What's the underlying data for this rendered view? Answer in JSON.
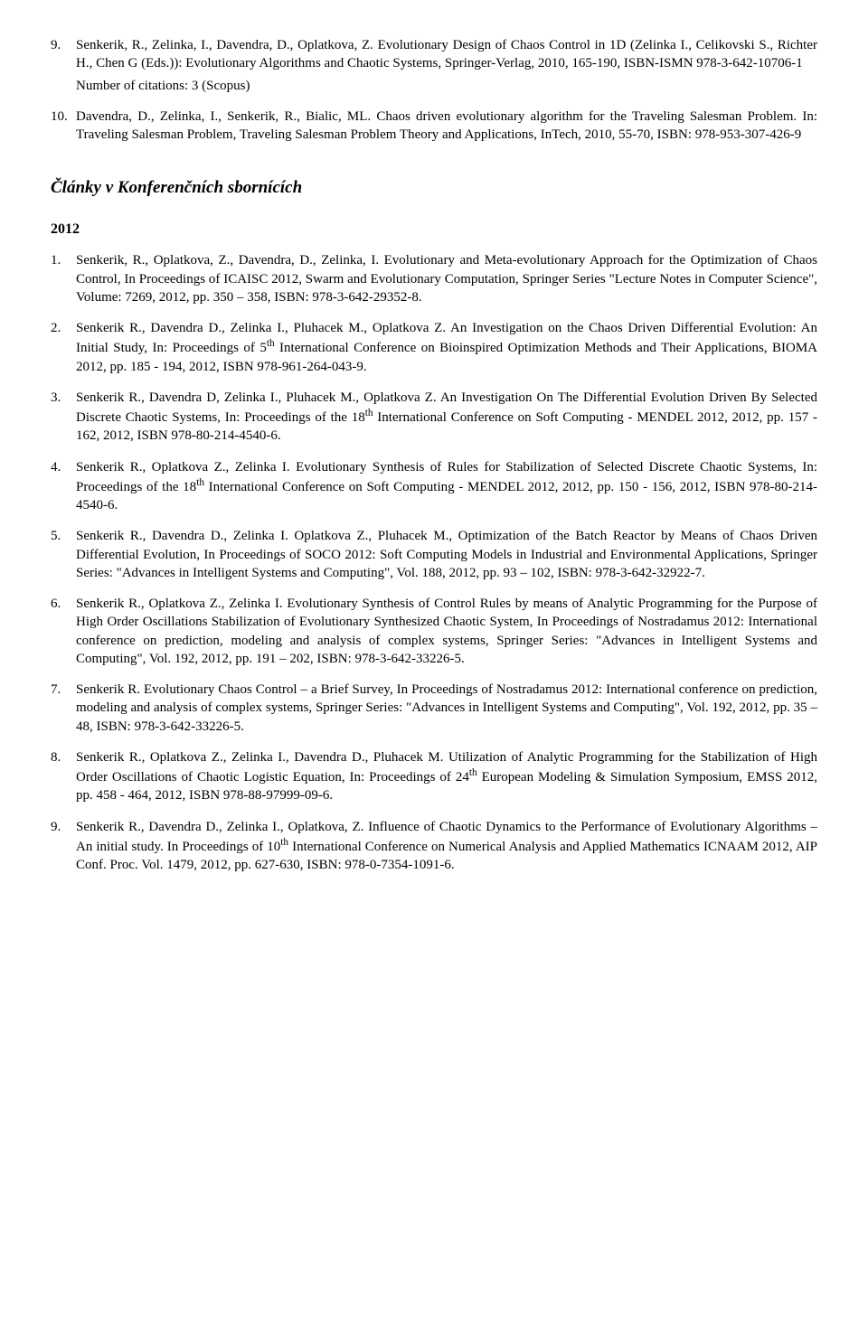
{
  "top_refs": [
    {
      "num": "9.",
      "text": "Senkerik, R., Zelinka, I., Davendra, D., Oplatkova, Z. Evolutionary Design of Chaos Control in 1D (Zelinka I., Celikovski S., Richter H., Chen G (Eds.)): Evolutionary Algorithms and Chaotic Systems, Springer-Verlag, 2010, 165-190, ISBN-ISMN 978-3-642-10706-1",
      "suffix": "Number of citations: 3 (Scopus)"
    },
    {
      "num": "10.",
      "text": "Davendra, D., Zelinka, I., Senkerik, R., Bialic, ML. Chaos driven evolutionary algorithm for the Traveling Salesman Problem. In: Traveling Salesman Problem, Traveling Salesman Problem Theory and Applications, InTech, 2010, 55-70, ISBN: 978-953-307-426-9",
      "suffix": ""
    }
  ],
  "section_title": "Články v Konferenčních sbornících",
  "year": "2012",
  "conf_refs": [
    {
      "num": "1.",
      "text": "Senkerik, R., Oplatkova, Z., Davendra, D., Zelinka, I. Evolutionary and Meta-evolutionary Approach for the Optimization of Chaos Control, In Proceedings of ICAISC 2012, Swarm and Evolutionary Computation, Springer Series \"Lecture Notes in Computer Science\", Volume: 7269, 2012, pp. 350 – 358, ISBN: 978-3-642-29352-8."
    },
    {
      "num": "2.",
      "html": "Senkerik R., Davendra D., Zelinka I., Pluhacek M., Oplatkova Z. An Investigation on the Chaos Driven Differential Evolution: An Initial Study, In: Proceedings of 5<sup>th</sup> International Conference on Bioinspired Optimization Methods and Their Applications, BIOMA 2012, pp. 185 - 194, 2012, ISBN 978-961-264-043-9."
    },
    {
      "num": "3.",
      "html": "Senkerik R., Davendra D, Zelinka I., Pluhacek M., Oplatkova Z. An Investigation On The Differential Evolution Driven By Selected Discrete Chaotic Systems, In: Proceedings of the 18<sup>th</sup> International Conference on Soft Computing - MENDEL 2012, 2012, pp. 157 - 162, 2012, ISBN 978-80-214-4540-6."
    },
    {
      "num": "4.",
      "html": "Senkerik R., Oplatkova Z., Zelinka I. Evolutionary Synthesis of Rules for Stabilization of Selected Discrete Chaotic Systems, In: Proceedings of the 18<sup>th</sup> International Conference on Soft Computing - MENDEL 2012, 2012, pp. 150 - 156, 2012, ISBN 978-80-214-4540-6."
    },
    {
      "num": "5.",
      "text": "Senkerik R., Davendra D., Zelinka I. Oplatkova Z., Pluhacek M., Optimization of the Batch Reactor by Means of Chaos Driven Differential Evolution, In Proceedings of SOCO 2012: Soft Computing Models in Industrial and Environmental Applications, Springer Series: \"Advances in Intelligent Systems and Computing\", Vol. 188, 2012, pp. 93 – 102, ISBN: 978-3-642-32922-7."
    },
    {
      "num": "6.",
      "text": "Senkerik R., Oplatkova Z., Zelinka I. Evolutionary Synthesis of Control Rules by means of Analytic Programming for the Purpose of High Order Oscillations Stabilization of Evolutionary Synthesized Chaotic System, In Proceedings of Nostradamus 2012: International conference on prediction, modeling and analysis of complex systems, Springer Series: \"Advances in Intelligent Systems and Computing\", Vol. 192, 2012, pp. 191 – 202, ISBN: 978-3-642-33226-5."
    },
    {
      "num": "7.",
      "text": "Senkerik R. Evolutionary Chaos Control – a Brief Survey, In Proceedings of Nostradamus 2012: International conference on prediction, modeling and analysis of complex systems, Springer Series: \"Advances in Intelligent Systems and Computing\", Vol. 192, 2012, pp. 35 – 48, ISBN: 978-3-642-33226-5."
    },
    {
      "num": "8.",
      "html": "Senkerik R., Oplatkova Z., Zelinka I., Davendra D., Pluhacek M. Utilization of Analytic Programming for the Stabilization of High Order Oscillations of Chaotic Logistic Equation, In: Proceedings of 24<sup>th</sup> European Modeling & Simulation Symposium, EMSS 2012, pp. 458 - 464, 2012, ISBN 978-88-97999-09-6."
    },
    {
      "num": "9.",
      "html": "Senkerik R., Davendra D., Zelinka I., Oplatkova, Z. Influence of Chaotic Dynamics to the Performance of Evolutionary Algorithms – An initial study. In Proceedings of 10<sup>th</sup> International Conference on Numerical Analysis and Applied Mathematics ICNAAM 2012, AIP Conf. Proc. Vol. 1479, 2012, pp. 627-630, ISBN: 978-0-7354-1091-6."
    }
  ]
}
